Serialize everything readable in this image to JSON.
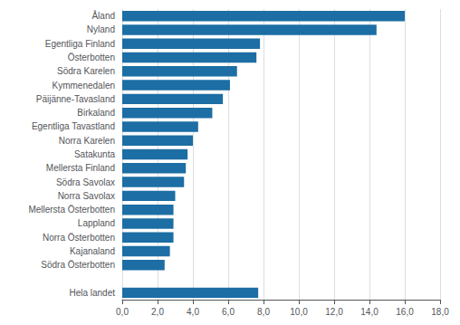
{
  "chart_data": {
    "type": "bar",
    "orientation": "horizontal",
    "categories": [
      "Hela landet",
      null,
      "Södra Österbotten",
      "Kajanaland",
      "Norra Österbotten",
      "Lappland",
      "Mellersta Österbotten",
      "Norra Savolax",
      "Södra Savolax",
      "Mellersta Finland",
      "Satakunta",
      "Norra Karelen",
      "Egentliga Tavastland",
      "Birkaland",
      "Päijänne-Tavasland",
      "Kymmenedalen",
      "Södra Karelen",
      "Österbotten",
      "Egentliga Finland",
      "Nyland",
      "Åland"
    ],
    "values": [
      7.7,
      0.0,
      2.4,
      2.7,
      2.9,
      2.9,
      2.9,
      3.0,
      3.5,
      3.6,
      3.7,
      4.0,
      4.3,
      5.1,
      5.7,
      6.1,
      6.5,
      7.6,
      7.8,
      14.4,
      16.0
    ],
    "color": "#1c6ea4",
    "xlim": [
      0,
      18.0
    ],
    "xticks": [
      {
        "value": 0.0,
        "label": "0,0"
      },
      {
        "value": 2.0,
        "label": "2,0"
      },
      {
        "value": 4.0,
        "label": "4,0"
      },
      {
        "value": 6.0,
        "label": "6,0"
      },
      {
        "value": 8.0,
        "label": "8,0"
      },
      {
        "value": 10.0,
        "label": "10,0"
      },
      {
        "value": 12.0,
        "label": "12,0"
      },
      {
        "value": 14.0,
        "label": "14,0"
      },
      {
        "value": 16.0,
        "label": "16,0"
      },
      {
        "value": 18.0,
        "label": "18,0"
      }
    ],
    "grid": true
  }
}
